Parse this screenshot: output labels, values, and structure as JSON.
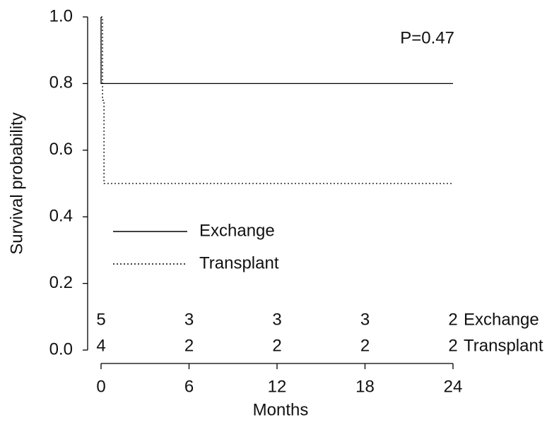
{
  "chart_data": {
    "type": "line",
    "x_label": "Months",
    "y_label": "Survival probability",
    "annotation": "P=0.47",
    "series": [
      {
        "name": "Exchange",
        "color": "#000000",
        "dash": "solid",
        "x": [
          0,
          0,
          24
        ],
        "values": [
          1.0,
          0.8,
          0.8
        ]
      },
      {
        "name": "Transplant",
        "color": "#000000",
        "dash": "dotted",
        "x": [
          0,
          0.1,
          0.1,
          0.2,
          0.2,
          24
        ],
        "values": [
          1.0,
          1.0,
          0.75,
          0.75,
          0.5,
          0.5
        ]
      }
    ],
    "at_risk": [
      [
        5,
        3,
        3,
        3,
        2
      ],
      [
        4,
        2,
        2,
        2,
        2
      ]
    ],
    "xlim": [
      0,
      24
    ],
    "xticks": [
      0,
      6,
      12,
      18,
      24
    ],
    "ylim": [
      0,
      1
    ],
    "yticks": [
      {
        "value": 0,
        "label": "0.0"
      },
      0.2,
      0.4,
      0.6,
      0.8,
      {
        "value": 1,
        "label": "1.0"
      }
    ]
  }
}
